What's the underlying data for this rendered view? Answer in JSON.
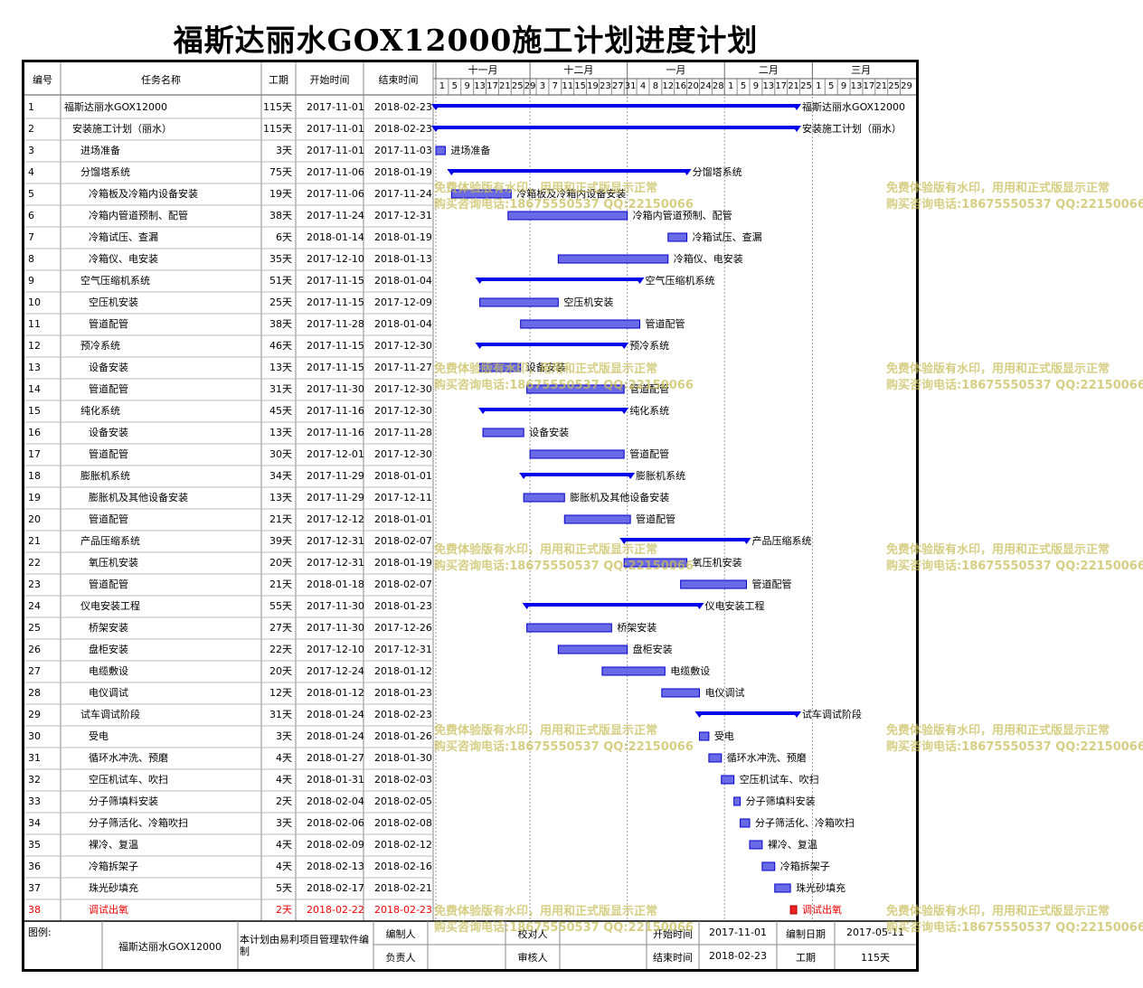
{
  "title": "福斯达丽水GOX12000施工计划进度计划",
  "headers": {
    "id": "编号",
    "name": "任务名称",
    "duration": "工期",
    "start": "开始时间",
    "end": "结束时间"
  },
  "months": [
    {
      "label": "十一月",
      "days": [
        "1",
        "5",
        "9",
        "13",
        "17",
        "21",
        "25",
        "29"
      ]
    },
    {
      "label": "十二月",
      "days": [
        "3",
        "7",
        "11",
        "15",
        "19",
        "23",
        "27",
        "31"
      ]
    },
    {
      "label": "一月",
      "days": [
        "4",
        "8",
        "12",
        "16",
        "20",
        "24",
        "28"
      ]
    },
    {
      "label": "二月",
      "days": [
        "1",
        "5",
        "9",
        "13",
        "17",
        "21",
        "25"
      ]
    },
    {
      "label": "三月",
      "days": [
        "1",
        "5",
        "9",
        "13",
        "17",
        "21",
        "25",
        "29"
      ]
    }
  ],
  "tasks": [
    {
      "id": "1",
      "name": "福斯达丽水GOX12000",
      "duration": "115天",
      "start": "2017-11-01",
      "end": "2018-02-23",
      "level": 0,
      "type": "summary"
    },
    {
      "id": "2",
      "name": "安装施工计划（丽水）",
      "duration": "115天",
      "start": "2017-11-01",
      "end": "2018-02-23",
      "level": 1,
      "type": "summary"
    },
    {
      "id": "3",
      "name": "进场准备",
      "duration": "3天",
      "start": "2017-11-01",
      "end": "2017-11-03",
      "level": 2,
      "type": "task"
    },
    {
      "id": "4",
      "name": "分馏塔系统",
      "duration": "75天",
      "start": "2017-11-06",
      "end": "2018-01-19",
      "level": 2,
      "type": "summary"
    },
    {
      "id": "5",
      "name": "冷箱板及冷箱内设备安装",
      "duration": "19天",
      "start": "2017-11-06",
      "end": "2017-11-24",
      "level": 3,
      "type": "task"
    },
    {
      "id": "6",
      "name": "冷箱内管道预制、配管",
      "duration": "38天",
      "start": "2017-11-24",
      "end": "2017-12-31",
      "level": 3,
      "type": "task"
    },
    {
      "id": "7",
      "name": "冷箱试压、查漏",
      "duration": "6天",
      "start": "2018-01-14",
      "end": "2018-01-19",
      "level": 3,
      "type": "task"
    },
    {
      "id": "8",
      "name": "冷箱仪、电安装",
      "duration": "35天",
      "start": "2017-12-10",
      "end": "2018-01-13",
      "level": 3,
      "type": "task"
    },
    {
      "id": "9",
      "name": "空气压缩机系统",
      "duration": "51天",
      "start": "2017-11-15",
      "end": "2018-01-04",
      "level": 2,
      "type": "summary"
    },
    {
      "id": "10",
      "name": "空压机安装",
      "duration": "25天",
      "start": "2017-11-15",
      "end": "2017-12-09",
      "level": 3,
      "type": "task"
    },
    {
      "id": "11",
      "name": "管道配管",
      "duration": "38天",
      "start": "2017-11-28",
      "end": "2018-01-04",
      "level": 3,
      "type": "task"
    },
    {
      "id": "12",
      "name": "预冷系统",
      "duration": "46天",
      "start": "2017-11-15",
      "end": "2017-12-30",
      "level": 2,
      "type": "summary"
    },
    {
      "id": "13",
      "name": "设备安装",
      "duration": "13天",
      "start": "2017-11-15",
      "end": "2017-11-27",
      "level": 3,
      "type": "task"
    },
    {
      "id": "14",
      "name": "管道配管",
      "duration": "31天",
      "start": "2017-11-30",
      "end": "2017-12-30",
      "level": 3,
      "type": "task"
    },
    {
      "id": "15",
      "name": "纯化系统",
      "duration": "45天",
      "start": "2017-11-16",
      "end": "2017-12-30",
      "level": 2,
      "type": "summary"
    },
    {
      "id": "16",
      "name": "设备安装",
      "duration": "13天",
      "start": "2017-11-16",
      "end": "2017-11-28",
      "level": 3,
      "type": "task"
    },
    {
      "id": "17",
      "name": "管道配管",
      "duration": "30天",
      "start": "2017-12-01",
      "end": "2017-12-30",
      "level": 3,
      "type": "task"
    },
    {
      "id": "18",
      "name": "膨胀机系统",
      "duration": "34天",
      "start": "2017-11-29",
      "end": "2018-01-01",
      "level": 2,
      "type": "summary"
    },
    {
      "id": "19",
      "name": "膨胀机及其他设备安装",
      "duration": "13天",
      "start": "2017-11-29",
      "end": "2017-12-11",
      "level": 3,
      "type": "task"
    },
    {
      "id": "20",
      "name": "管道配管",
      "duration": "21天",
      "start": "2017-12-12",
      "end": "2018-01-01",
      "level": 3,
      "type": "task"
    },
    {
      "id": "21",
      "name": "产品压缩系统",
      "duration": "39天",
      "start": "2017-12-31",
      "end": "2018-02-07",
      "level": 2,
      "type": "summary"
    },
    {
      "id": "22",
      "name": "氧压机安装",
      "duration": "20天",
      "start": "2017-12-31",
      "end": "2018-01-19",
      "level": 3,
      "type": "task"
    },
    {
      "id": "23",
      "name": "管道配管",
      "duration": "21天",
      "start": "2018-01-18",
      "end": "2018-02-07",
      "level": 3,
      "type": "task"
    },
    {
      "id": "24",
      "name": "仪电安装工程",
      "duration": "55天",
      "start": "2017-11-30",
      "end": "2018-01-23",
      "level": 2,
      "type": "summary"
    },
    {
      "id": "25",
      "name": "桥架安装",
      "duration": "27天",
      "start": "2017-11-30",
      "end": "2017-12-26",
      "level": 3,
      "type": "task"
    },
    {
      "id": "26",
      "name": "盘柜安装",
      "duration": "22天",
      "start": "2017-12-10",
      "end": "2017-12-31",
      "level": 3,
      "type": "task"
    },
    {
      "id": "27",
      "name": "电缆敷设",
      "duration": "20天",
      "start": "2017-12-24",
      "end": "2018-01-12",
      "level": 3,
      "type": "task"
    },
    {
      "id": "28",
      "name": "电仪调试",
      "duration": "12天",
      "start": "2018-01-12",
      "end": "2018-01-23",
      "level": 3,
      "type": "task"
    },
    {
      "id": "29",
      "name": "试车调试阶段",
      "duration": "31天",
      "start": "2018-01-24",
      "end": "2018-02-23",
      "level": 2,
      "type": "summary"
    },
    {
      "id": "30",
      "name": "受电",
      "duration": "3天",
      "start": "2018-01-24",
      "end": "2018-01-26",
      "level": 3,
      "type": "task"
    },
    {
      "id": "31",
      "name": "循环水冲洗、预磨",
      "duration": "4天",
      "start": "2018-01-27",
      "end": "2018-01-30",
      "level": 3,
      "type": "task"
    },
    {
      "id": "32",
      "name": "空压机试车、吹扫",
      "duration": "4天",
      "start": "2018-01-31",
      "end": "2018-02-03",
      "level": 3,
      "type": "task"
    },
    {
      "id": "33",
      "name": "分子筛填料安装",
      "duration": "2天",
      "start": "2018-02-04",
      "end": "2018-02-05",
      "level": 3,
      "type": "task"
    },
    {
      "id": "34",
      "name": "分子筛活化、冷箱吹扫",
      "duration": "3天",
      "start": "2018-02-06",
      "end": "2018-02-08",
      "level": 3,
      "type": "task"
    },
    {
      "id": "35",
      "name": "裸冷、复温",
      "duration": "4天",
      "start": "2018-02-09",
      "end": "2018-02-12",
      "level": 3,
      "type": "task"
    },
    {
      "id": "36",
      "name": "冷箱拆架子",
      "duration": "4天",
      "start": "2018-02-13",
      "end": "2018-02-16",
      "level": 3,
      "type": "task"
    },
    {
      "id": "37",
      "name": "珠光砂填充",
      "duration": "5天",
      "start": "2018-02-17",
      "end": "2018-02-21",
      "level": 3,
      "type": "task"
    },
    {
      "id": "38",
      "name": "调试出氧",
      "duration": "2天",
      "start": "2018-02-22",
      "end": "2018-02-23",
      "level": 3,
      "type": "critical"
    }
  ],
  "chart_data": {
    "type": "gantt",
    "title": "福斯达丽水GOX12000施工计划进度计划",
    "x_axis_start": "2017-11-01",
    "x_axis_end": "2018-03-31",
    "colors": {
      "summary": "#0000ee",
      "task_fill": "#6a6ae6",
      "task_border": "#0000cc",
      "critical": "#ee2222",
      "watermark": "#c8be5a"
    }
  },
  "watermark": {
    "line1": "免费体验版有水印，用用和正式版显示正常",
    "line2": "购买咨询电话:18675550537 QQ:22150066"
  },
  "footer": {
    "legend_label": "图例:",
    "project": "福斯达丽水GOX12000",
    "note": "本计划由易利项目管理软件编制",
    "author_label": "编制人",
    "author": "",
    "checker_label": "校对人",
    "checker": "",
    "start_label": "开始时间",
    "start": "2017-11-01",
    "date_label": "编制日期",
    "date": "2017-05-11",
    "owner_label": "负责人",
    "owner": "",
    "reviewer_label": "审核人",
    "reviewer": "",
    "end_label": "结束时间",
    "end": "2018-02-23",
    "duration_label": "工期",
    "duration": "115天"
  }
}
